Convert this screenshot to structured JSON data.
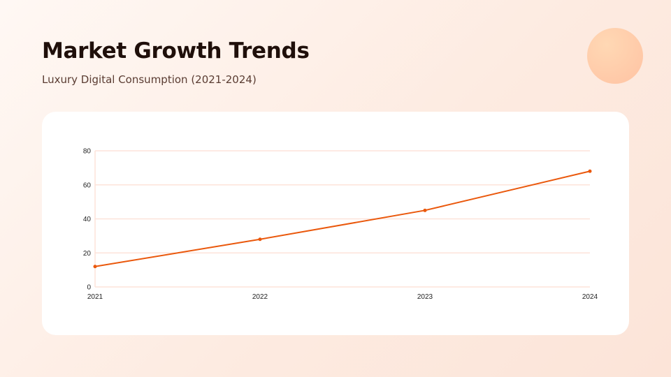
{
  "header": {
    "title": "Market Growth Trends",
    "subtitle": "Luxury Digital Consumption (2021-2024)"
  },
  "colors": {
    "accent": "#ea580c",
    "grid": "#fde3da",
    "decor_circle": "#ffc9a8"
  },
  "chart_data": {
    "type": "line",
    "title": "",
    "xlabel": "",
    "ylabel": "",
    "categories": [
      "2021",
      "2022",
      "2023",
      "2024"
    ],
    "series": [
      {
        "name": "Luxury Digital Consumption",
        "values": [
          12,
          28,
          45,
          68
        ]
      }
    ],
    "ylim": [
      0,
      80
    ],
    "yticks": [
      0,
      20,
      40,
      60,
      80
    ],
    "grid": true,
    "legend": "none"
  }
}
